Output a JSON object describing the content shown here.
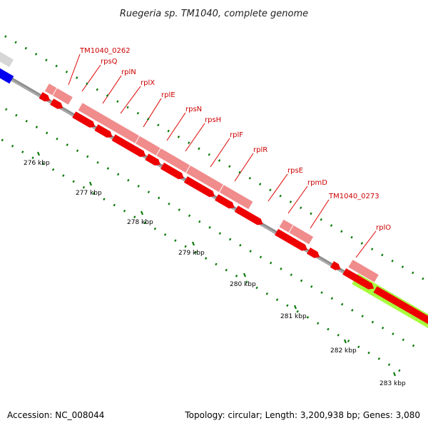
{
  "title": "Ruegeria sp. TM1040, complete genome",
  "footer": {
    "accession": "Accession: NC_008044",
    "summary": "Topology: circular; Length: 3,200,938 bp; Genes: 3,080"
  },
  "colors": {
    "backbone": "#8f8f8f",
    "tick": "#0a7a0a",
    "gene_cds": "#ee0000",
    "gene_bar": "#f08c8c",
    "label_line": "#dd0000",
    "label_text": "#cc0000",
    "blue_feature": "#0000ee",
    "green_feature": "#a8ff3c",
    "grey_feature": "#d6d6d6"
  },
  "chart_data": {
    "type": "genome-map",
    "view_range_kbp": [
      275.0,
      283.5
    ],
    "tick_labels": [
      "276 kbp",
      "277 kbp",
      "278 kbp",
      "279 kbp",
      "280 kbp",
      "281 kbp",
      "282 kbp",
      "283 kbp"
    ],
    "gene_labels": [
      "TM1040_0262",
      "rpsQ",
      "rplN",
      "rplX",
      "rplE",
      "rpsN",
      "rpsH",
      "rplF",
      "rplR",
      "rpsE",
      "rpmD",
      "TM1040_0273",
      "rplO"
    ]
  }
}
